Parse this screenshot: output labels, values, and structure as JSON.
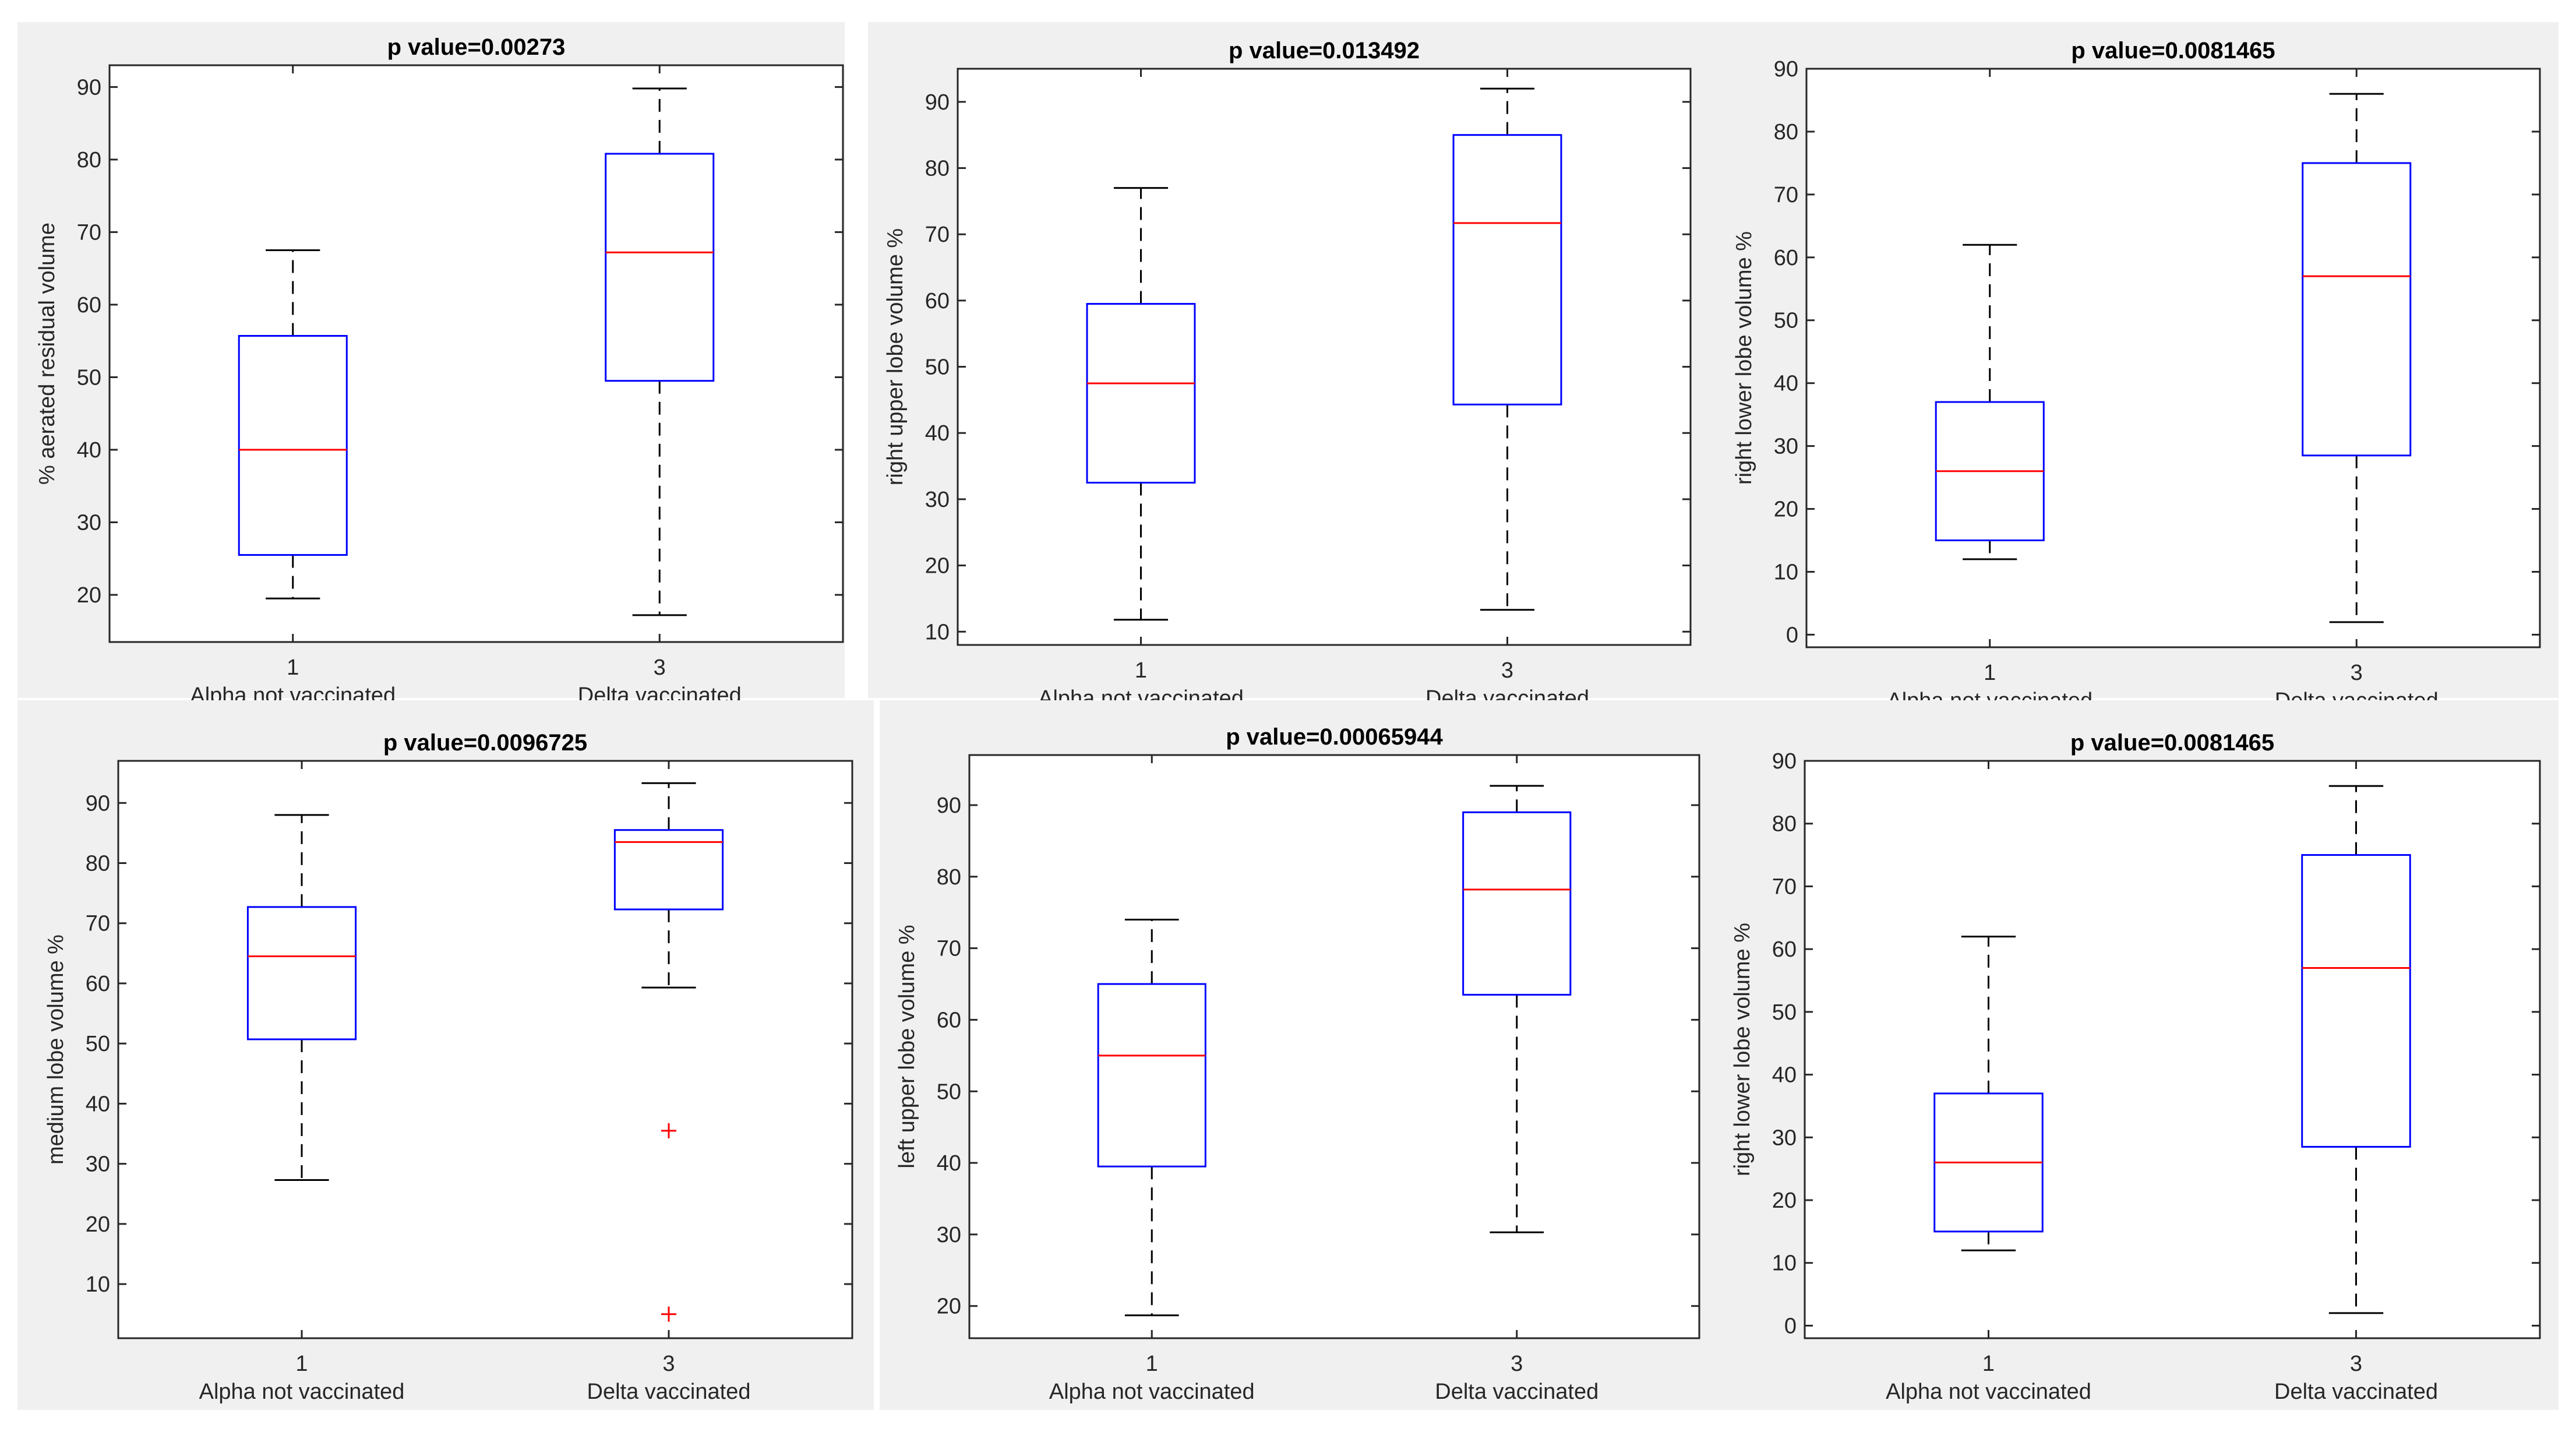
{
  "colors": {
    "background": "#ffffff",
    "panel": "#f0f0f0",
    "box": "#0000ff",
    "median": "#ff0000",
    "outlier": "#ff0000",
    "whisker": "#000000",
    "axis": "#262626"
  },
  "chart_data": [
    {
      "type": "boxplot",
      "title": "p value=0.00273",
      "ylabel": "% aerated residual volume",
      "ylim": [
        13.5,
        93
      ],
      "yticks": [
        20,
        30,
        40,
        50,
        60,
        70,
        80,
        90
      ],
      "xticks": [
        "1",
        "3"
      ],
      "categories": [
        "Alpha not vaccinated",
        "Delta vaccinated"
      ],
      "boxes": [
        {
          "whisker_low": 19.5,
          "q1": 25.5,
          "median": 40,
          "q3": 55.7,
          "whisker_high": 67.5,
          "outliers": []
        },
        {
          "whisker_low": 17.2,
          "q1": 49.5,
          "median": 67.2,
          "q3": 80.8,
          "whisker_high": 89.8,
          "outliers": []
        }
      ]
    },
    {
      "type": "boxplot",
      "title": "p value=0.013492",
      "ylabel": "right upper lobe volume %",
      "ylim": [
        8,
        95
      ],
      "yticks": [
        10,
        20,
        30,
        40,
        50,
        60,
        70,
        80,
        90
      ],
      "xticks": [
        "1",
        "3"
      ],
      "categories": [
        "Alpha not vaccinated",
        "Delta vaccinated"
      ],
      "boxes": [
        {
          "whisker_low": 11.8,
          "q1": 32.5,
          "median": 47.5,
          "q3": 59.5,
          "whisker_high": 77,
          "outliers": []
        },
        {
          "whisker_low": 13.3,
          "q1": 44.3,
          "median": 71.7,
          "q3": 85,
          "whisker_high": 92,
          "outliers": []
        }
      ]
    },
    {
      "type": "boxplot",
      "title": "p value=0.0081465",
      "ylabel": "right lower lobe volume %",
      "ylim": [
        -2,
        90
      ],
      "yticks": [
        0,
        10,
        20,
        30,
        40,
        50,
        60,
        70,
        80,
        90
      ],
      "xticks": [
        "1",
        "3"
      ],
      "categories": [
        "Alpha not vaccinated",
        "Delta vaccinated"
      ],
      "boxes": [
        {
          "whisker_low": 12,
          "q1": 15,
          "median": 26,
          "q3": 37,
          "whisker_high": 62,
          "outliers": []
        },
        {
          "whisker_low": 2,
          "q1": 28.5,
          "median": 57,
          "q3": 75,
          "whisker_high": 86,
          "outliers": []
        }
      ]
    },
    {
      "type": "boxplot",
      "title": "p value=0.0096725",
      "ylabel": "medium lobe volume %",
      "ylim": [
        1,
        97
      ],
      "yticks": [
        10,
        20,
        30,
        40,
        50,
        60,
        70,
        80,
        90
      ],
      "xticks": [
        "1",
        "3"
      ],
      "categories": [
        "Alpha not vaccinated",
        "Delta vaccinated"
      ],
      "boxes": [
        {
          "whisker_low": 27.3,
          "q1": 50.7,
          "median": 64.5,
          "q3": 72.7,
          "whisker_high": 88,
          "outliers": []
        },
        {
          "whisker_low": 59.3,
          "q1": 72.3,
          "median": 83.5,
          "q3": 85.5,
          "whisker_high": 93.3,
          "outliers": [
            35.5,
            5
          ]
        }
      ]
    },
    {
      "type": "boxplot",
      "title": "p value=0.00065944",
      "ylabel": "left upper lobe volume %",
      "ylim": [
        15.5,
        97
      ],
      "yticks": [
        20,
        30,
        40,
        50,
        60,
        70,
        80,
        90
      ],
      "xticks": [
        "1",
        "3"
      ],
      "categories": [
        "Alpha not vaccinated",
        "Delta vaccinated"
      ],
      "boxes": [
        {
          "whisker_low": 18.7,
          "q1": 39.5,
          "median": 55,
          "q3": 65,
          "whisker_high": 74,
          "outliers": []
        },
        {
          "whisker_low": 30.3,
          "q1": 63.5,
          "median": 78.2,
          "q3": 89,
          "whisker_high": 92.7,
          "outliers": []
        }
      ]
    },
    {
      "type": "boxplot",
      "title": "p value=0.0081465",
      "ylabel": "right lower lobe volume %",
      "ylim": [
        -2,
        90
      ],
      "yticks": [
        0,
        10,
        20,
        30,
        40,
        50,
        60,
        70,
        80,
        90
      ],
      "xticks": [
        "1",
        "3"
      ],
      "categories": [
        "Alpha not vaccinated",
        "Delta vaccinated"
      ],
      "boxes": [
        {
          "whisker_low": 12,
          "q1": 15,
          "median": 26,
          "q3": 37,
          "whisker_high": 62,
          "outliers": []
        },
        {
          "whisker_low": 2,
          "q1": 28.5,
          "median": 57,
          "q3": 75,
          "whisker_high": 86,
          "outliers": []
        }
      ]
    }
  ]
}
